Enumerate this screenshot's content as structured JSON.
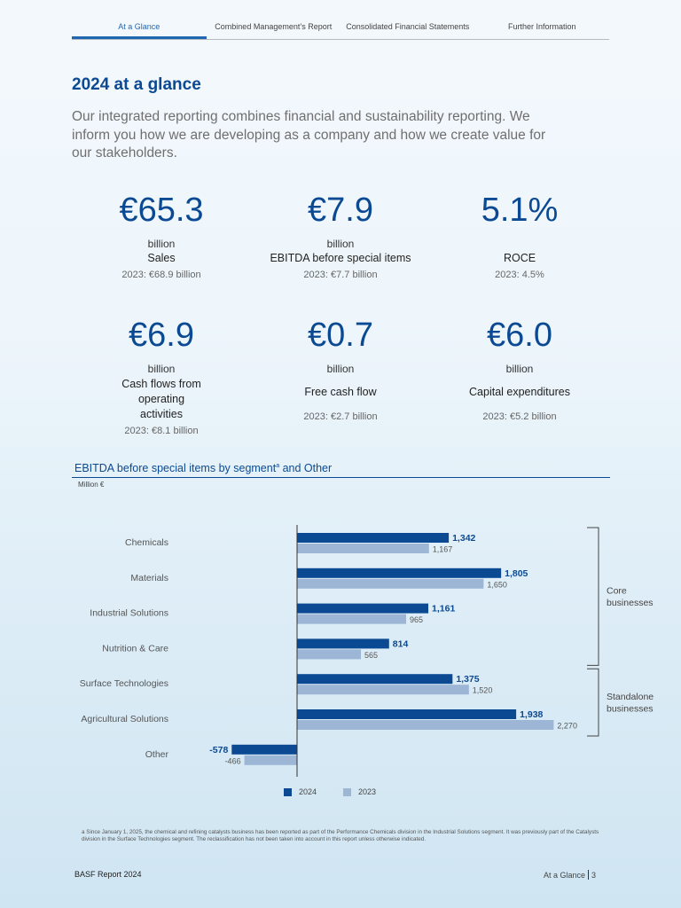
{
  "nav": {
    "tabs": [
      {
        "label": "At a Glance",
        "active": true
      },
      {
        "label": "Combined Management’s Report",
        "active": false
      },
      {
        "label": "Consolidated Financial Statements",
        "active": false
      },
      {
        "label": "Further Information",
        "active": false
      }
    ]
  },
  "page": {
    "title": "2024 at a glance",
    "intro": "Our integrated reporting combines financial and sustainability reporting. We inform you how we are developing as a company and how we create value for our stakeholders."
  },
  "kpis": [
    {
      "value": "€65.3",
      "unit": "billion",
      "label": "Sales",
      "prev": "2023: €68.9 billion"
    },
    {
      "value": "€7.9",
      "unit": "billion",
      "label": "EBITDA before special items",
      "prev": "2023: €7.7 billion"
    },
    {
      "value": "5.1%",
      "unit": "",
      "label": "ROCE",
      "prev": "2023: 4.5%"
    },
    {
      "value": "€6.9",
      "unit": "billion",
      "label": "Cash flows from operating activities",
      "prev": "2023: €8.1 billion"
    },
    {
      "value": "€0.7",
      "unit": "billion",
      "label": "Free cash flow",
      "prev": "2023: €2.7 billion"
    },
    {
      "value": "€6.0",
      "unit": "billion",
      "label": "Capital expenditures",
      "prev": "2023: €5.2 billion"
    }
  ],
  "chart_section": {
    "title": "EBITDA before special items by segment",
    "title_sup": "a",
    "title_suffix": " and Other",
    "unit": "Million €"
  },
  "chart_data": {
    "type": "bar",
    "orientation": "horizontal",
    "categories": [
      "Chemicals",
      "Materials",
      "Industrial Solutions",
      "Nutrition & Care",
      "Surface Technologies",
      "Agricultural Solutions",
      "Other"
    ],
    "series": [
      {
        "name": "2024",
        "color": "#0b4a93",
        "values": [
          1342,
          1805,
          1161,
          814,
          1375,
          1938,
          -578
        ],
        "labels": [
          "1,342",
          "1,805",
          "1,161",
          "814",
          "1,375",
          "1,938",
          "-578"
        ]
      },
      {
        "name": "2023",
        "color": "#9db6d6",
        "values": [
          1167,
          1650,
          965,
          565,
          1520,
          2270,
          -466
        ],
        "labels": [
          "1,167",
          "1,650",
          "965",
          "565",
          "1,520",
          "2,270",
          "-466"
        ]
      }
    ],
    "groups": [
      {
        "label_lines": [
          "Core",
          "businesses"
        ],
        "from": 0,
        "to": 3
      },
      {
        "label_lines": [
          "Standalone",
          "businesses"
        ],
        "from": 4,
        "to": 5
      }
    ]
  },
  "footnote": "a Since January 1, 2025, the chemical and refining catalysts business has been reported as part of the Performance Chemicals division in the Industrial Solutions segment. It was previously part of the Catalysts division in the Surface Technologies segment. The reclassification has not been taken into account in this report unless otherwise indicated.",
  "footer": {
    "left": "BASF Report 2024",
    "right_section": "At a Glance",
    "page_number": "3"
  }
}
